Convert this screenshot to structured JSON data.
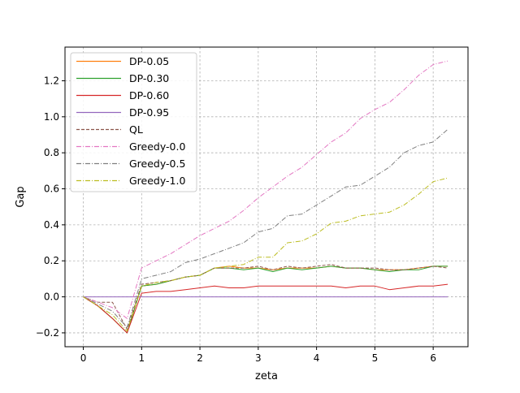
{
  "chart_data": {
    "type": "line",
    "title": "",
    "xlabel": "zeta",
    "ylabel": "Gap",
    "xlim": [
      -0.314,
      6.597
    ],
    "ylim": [
      -0.277,
      1.387
    ],
    "grid": true,
    "grid_style": "dashed",
    "legend_position": "top-left",
    "x_ticks": [
      0,
      1,
      2,
      3,
      4,
      5,
      6
    ],
    "y_ticks": [
      -0.2,
      0.0,
      0.2,
      0.4,
      0.6,
      0.8,
      1.0,
      1.2
    ],
    "x_tick_labels": [
      "0",
      "1",
      "2",
      "3",
      "4",
      "5",
      "6"
    ],
    "y_tick_labels": [
      "−0.2",
      "0.0",
      "0.2",
      "0.4",
      "0.6",
      "0.8",
      "1.0",
      "1.2"
    ],
    "x": [
      0,
      0.25,
      0.5,
      0.75,
      1.0,
      1.25,
      1.5,
      1.75,
      2.0,
      2.25,
      2.5,
      2.75,
      3.0,
      3.25,
      3.5,
      3.75,
      4.0,
      4.25,
      4.5,
      4.75,
      5.0,
      5.25,
      5.5,
      5.75,
      6.0,
      6.25
    ],
    "series": [
      {
        "name": "DP-0.05",
        "color": "#ff7f0e",
        "dash": "",
        "values": [
          0,
          -0.05,
          -0.12,
          -0.2,
          0.06,
          0.07,
          0.09,
          0.11,
          0.12,
          0.16,
          0.17,
          0.16,
          0.16,
          0.15,
          0.16,
          0.16,
          0.16,
          0.17,
          0.16,
          0.16,
          0.15,
          0.15,
          0.15,
          0.16,
          0.17,
          0.17
        ]
      },
      {
        "name": "DP-0.30",
        "color": "#2ca02c",
        "dash": "",
        "values": [
          0,
          -0.05,
          -0.12,
          -0.2,
          0.06,
          0.07,
          0.09,
          0.11,
          0.12,
          0.16,
          0.16,
          0.15,
          0.16,
          0.14,
          0.16,
          0.15,
          0.16,
          0.17,
          0.16,
          0.16,
          0.15,
          0.14,
          0.15,
          0.15,
          0.17,
          0.17
        ]
      },
      {
        "name": "DP-0.60",
        "color": "#d62728",
        "dash": "",
        "values": [
          0,
          -0.05,
          -0.12,
          -0.2,
          0.02,
          0.03,
          0.03,
          0.04,
          0.05,
          0.06,
          0.05,
          0.05,
          0.06,
          0.06,
          0.06,
          0.06,
          0.06,
          0.06,
          0.05,
          0.06,
          0.06,
          0.04,
          0.05,
          0.06,
          0.06,
          0.07
        ]
      },
      {
        "name": "DP-0.95",
        "color": "#9467bd",
        "dash": "",
        "values": [
          0,
          0,
          0,
          0,
          0,
          0,
          0,
          0,
          0,
          0,
          0,
          0,
          0,
          0,
          0,
          0,
          0,
          0,
          0,
          0,
          0,
          0,
          0,
          0,
          0,
          0
        ]
      },
      {
        "name": "QL",
        "color": "#8c564b",
        "dash": "4,2",
        "values": [
          0,
          -0.03,
          -0.03,
          -0.18,
          0.07,
          0.08,
          0.09,
          0.11,
          0.12,
          0.16,
          0.16,
          0.16,
          0.17,
          0.15,
          0.17,
          0.16,
          0.17,
          0.18,
          0.16,
          0.16,
          0.16,
          0.15,
          0.15,
          0.16,
          0.17,
          0.16
        ]
      },
      {
        "name": "Greedy-0.0",
        "color": "#e377c2",
        "dash": "6,2,1,2",
        "values": [
          0,
          -0.03,
          -0.06,
          -0.12,
          0.16,
          0.2,
          0.24,
          0.29,
          0.34,
          0.38,
          0.42,
          0.48,
          0.55,
          0.61,
          0.67,
          0.72,
          0.79,
          0.86,
          0.91,
          0.99,
          1.04,
          1.08,
          1.15,
          1.23,
          1.29,
          1.31
        ]
      },
      {
        "name": "Greedy-0.5",
        "color": "#7f7f7f",
        "dash": "6,2,1,2",
        "values": [
          0,
          -0.04,
          -0.08,
          -0.17,
          0.1,
          0.12,
          0.14,
          0.19,
          0.21,
          0.24,
          0.27,
          0.3,
          0.36,
          0.38,
          0.45,
          0.46,
          0.51,
          0.56,
          0.61,
          0.62,
          0.67,
          0.72,
          0.8,
          0.84,
          0.86,
          0.93
        ]
      },
      {
        "name": "Greedy-1.0",
        "color": "#bcbd22",
        "dash": "6,2,1,2",
        "values": [
          0,
          -0.05,
          -0.1,
          -0.19,
          0.06,
          0.08,
          0.09,
          0.11,
          0.12,
          0.16,
          0.17,
          0.18,
          0.22,
          0.22,
          0.3,
          0.31,
          0.35,
          0.41,
          0.42,
          0.45,
          0.46,
          0.47,
          0.51,
          0.57,
          0.64,
          0.66
        ]
      }
    ]
  }
}
